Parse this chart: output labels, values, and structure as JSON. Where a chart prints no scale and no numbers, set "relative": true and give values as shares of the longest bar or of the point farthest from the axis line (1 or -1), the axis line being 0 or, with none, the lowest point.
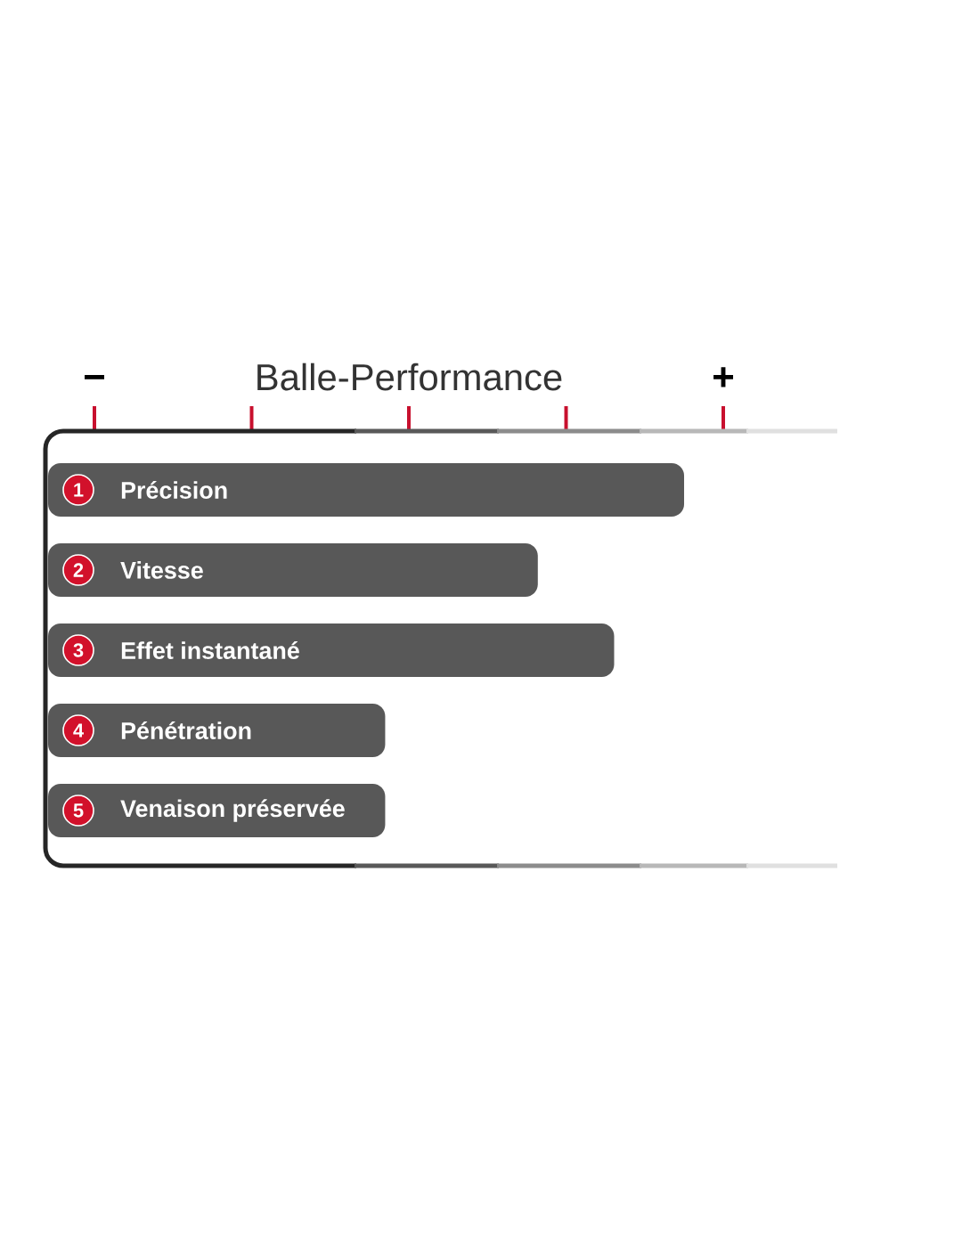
{
  "chart_data": {
    "type": "bar",
    "orientation": "horizontal",
    "relative": true,
    "title": "Balle-Performance",
    "categories": [
      "Précision",
      "Vitesse",
      "Effet instantané",
      "Pénétration",
      "Venaison préservée"
    ],
    "values": [
      1,
      0.77,
      0.89,
      0.53,
      0.53
    ],
    "color": "#585858",
    "annotations": [
      "−",
      "+",
      "1",
      "2",
      "3",
      "4",
      "5"
    ]
  }
}
